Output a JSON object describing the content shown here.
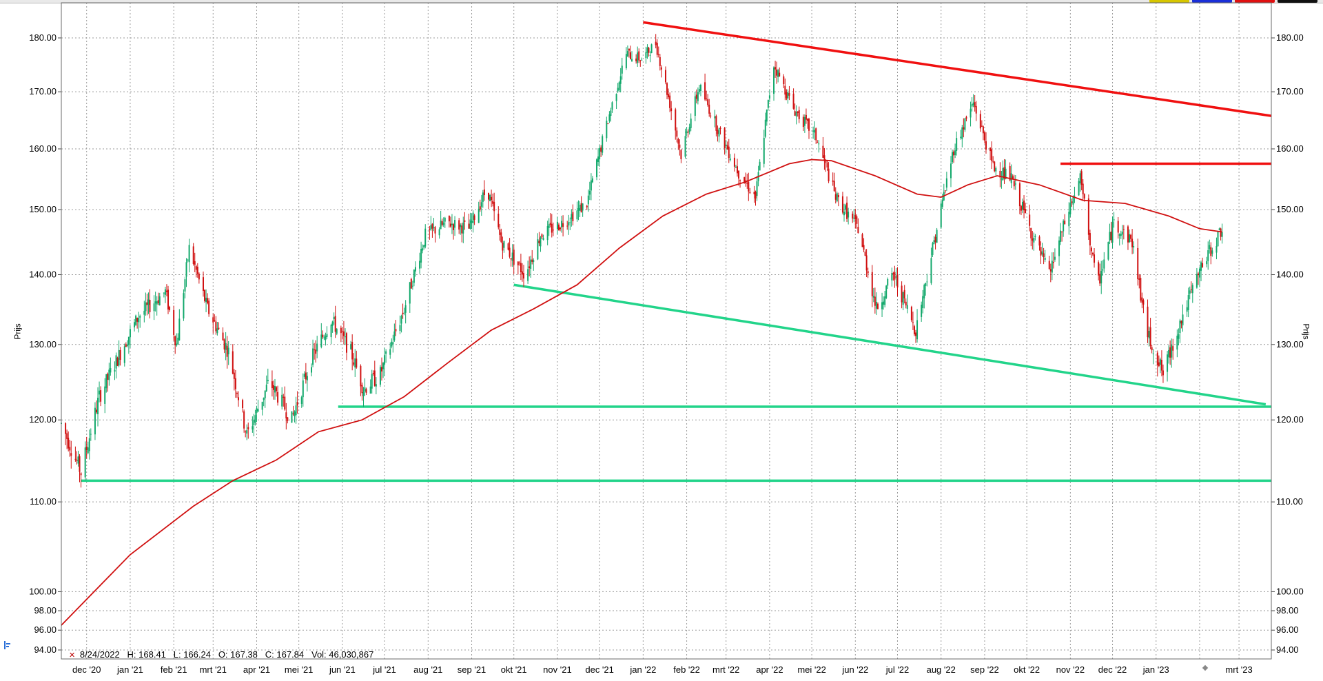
{
  "ohlc_readout": {
    "date": "8/24/2022",
    "high": "H: 168.41",
    "low": "L: 166.24",
    "open": "O: 167.38",
    "close": "C: 167.84",
    "volume": "Vol: 46,030,867"
  },
  "colors": {
    "up": "#12a86b",
    "down": "#d01010",
    "trend_red": "#f01010",
    "trend_green": "#22d48a",
    "ma": "#d01010",
    "grid": "#9a9a9a"
  },
  "icons": [
    "chart-icon",
    "close-x-icon",
    "scroll-diamond-icon"
  ],
  "chart_data": {
    "type": "candlestick",
    "ylabel": "Prijs",
    "ylim": [
      93,
      184
    ],
    "yscale": "log",
    "y_ticks": [
      "180.00",
      "170.00",
      "160.00",
      "150.00",
      "140.00",
      "130.00",
      "120.00",
      "110.00",
      "100.00",
      "98.00",
      "96.00",
      "94.00"
    ],
    "x_ticks": [
      "dec '20",
      "jan '21",
      "feb '21",
      "mrt '21",
      "apr '21",
      "mei '21",
      "jun '21",
      "jul '21",
      "aug '21",
      "sep '21",
      "okt '21",
      "nov '21",
      "dec '21",
      "jan '22",
      "feb '22",
      "mrt '22",
      "apr '22",
      "mei '22",
      "jun '22",
      "jul '22",
      "aug '22",
      "sep '22",
      "okt '22",
      "nov '22",
      "dec '22",
      "jan '23",
      "mrt '23"
    ],
    "x_range": [
      "2020-11-13",
      "2023-03-24"
    ],
    "key_points": [
      {
        "date": "2020-11-13",
        "price": 119.5
      },
      {
        "date": "2020-11-27",
        "price": 113.5
      },
      {
        "date": "2020-12-10",
        "price": 123.0
      },
      {
        "date": "2021-01-07",
        "price": 134.0
      },
      {
        "date": "2021-01-26",
        "price": 137.5
      },
      {
        "date": "2021-02-03",
        "price": 130.0
      },
      {
        "date": "2021-02-12",
        "price": 144.0
      },
      {
        "date": "2021-02-25",
        "price": 135.0
      },
      {
        "date": "2021-03-12",
        "price": 129.0
      },
      {
        "date": "2021-03-25",
        "price": 118.0
      },
      {
        "date": "2021-04-10",
        "price": 125.0
      },
      {
        "date": "2021-04-26",
        "price": 120.0
      },
      {
        "date": "2021-05-10",
        "price": 128.0
      },
      {
        "date": "2021-05-24",
        "price": 133.5
      },
      {
        "date": "2021-06-07",
        "price": 129.0
      },
      {
        "date": "2021-06-16",
        "price": 124.0
      },
      {
        "date": "2021-06-28",
        "price": 126.0
      },
      {
        "date": "2021-07-15",
        "price": 135.0
      },
      {
        "date": "2021-07-30",
        "price": 146.0
      },
      {
        "date": "2021-08-15",
        "price": 148.0
      },
      {
        "date": "2021-08-30",
        "price": 147.0
      },
      {
        "date": "2021-09-12",
        "price": 153.5
      },
      {
        "date": "2021-09-22",
        "price": 145.0
      },
      {
        "date": "2021-10-09",
        "price": 140.0
      },
      {
        "date": "2021-10-20",
        "price": 146.0
      },
      {
        "date": "2021-11-05",
        "price": 148.0
      },
      {
        "date": "2021-11-22",
        "price": 151.0
      },
      {
        "date": "2021-12-07",
        "price": 165.0
      },
      {
        "date": "2021-12-20",
        "price": 177.0
      },
      {
        "date": "2021-12-31",
        "price": 176.0
      },
      {
        "date": "2022-01-10",
        "price": 179.0
      },
      {
        "date": "2022-01-28",
        "price": 159.0
      },
      {
        "date": "2022-02-10",
        "price": 171.0
      },
      {
        "date": "2022-02-24",
        "price": 163.0
      },
      {
        "date": "2022-03-10",
        "price": 156.0
      },
      {
        "date": "2022-03-22",
        "price": 152.0
      },
      {
        "date": "2022-04-04",
        "price": 175.0
      },
      {
        "date": "2022-04-18",
        "price": 167.0
      },
      {
        "date": "2022-05-04",
        "price": 162.0
      },
      {
        "date": "2022-05-18",
        "price": 152.0
      },
      {
        "date": "2022-06-03",
        "price": 147.0
      },
      {
        "date": "2022-06-16",
        "price": 135.0
      },
      {
        "date": "2022-06-28",
        "price": 140.0
      },
      {
        "date": "2022-07-14",
        "price": 132.0
      },
      {
        "date": "2022-07-28",
        "price": 146.0
      },
      {
        "date": "2022-08-10",
        "price": 160.0
      },
      {
        "date": "2022-08-24",
        "price": 168.0
      },
      {
        "date": "2022-09-07",
        "price": 157.0
      },
      {
        "date": "2022-09-20",
        "price": 155.0
      },
      {
        "date": "2022-10-05",
        "price": 146.0
      },
      {
        "date": "2022-10-17",
        "price": 140.0
      },
      {
        "date": "2022-10-31",
        "price": 150.0
      },
      {
        "date": "2022-11-08",
        "price": 155.0
      },
      {
        "date": "2022-11-20",
        "price": 138.0
      },
      {
        "date": "2022-12-02",
        "price": 148.0
      },
      {
        "date": "2022-12-15",
        "price": 145.0
      },
      {
        "date": "2022-12-25",
        "price": 132.0
      },
      {
        "date": "2023-01-06",
        "price": 126.0
      },
      {
        "date": "2023-01-18",
        "price": 133.0
      },
      {
        "date": "2023-02-02",
        "price": 141.0
      },
      {
        "date": "2023-02-12",
        "price": 145.0
      },
      {
        "date": "2023-02-17",
        "price": 147.0
      }
    ],
    "moving_average": [
      {
        "date": "2020-11-13",
        "price": 96.5
      },
      {
        "date": "2021-01-01",
        "price": 104.0
      },
      {
        "date": "2021-02-15",
        "price": 109.5
      },
      {
        "date": "2021-03-15",
        "price": 112.5
      },
      {
        "date": "2021-04-15",
        "price": 115.0
      },
      {
        "date": "2021-05-15",
        "price": 118.5
      },
      {
        "date": "2021-06-15",
        "price": 120.0
      },
      {
        "date": "2021-07-15",
        "price": 123.0
      },
      {
        "date": "2021-08-15",
        "price": 127.5
      },
      {
        "date": "2021-09-15",
        "price": 132.0
      },
      {
        "date": "2021-10-15",
        "price": 135.0
      },
      {
        "date": "2021-11-15",
        "price": 138.5
      },
      {
        "date": "2021-12-15",
        "price": 144.0
      },
      {
        "date": "2022-01-15",
        "price": 149.0
      },
      {
        "date": "2022-02-15",
        "price": 152.5
      },
      {
        "date": "2022-03-15",
        "price": 154.5
      },
      {
        "date": "2022-04-15",
        "price": 157.5
      },
      {
        "date": "2022-05-01",
        "price": 158.2
      },
      {
        "date": "2022-05-15",
        "price": 158.0
      },
      {
        "date": "2022-06-15",
        "price": 155.5
      },
      {
        "date": "2022-07-15",
        "price": 152.5
      },
      {
        "date": "2022-08-01",
        "price": 152.0
      },
      {
        "date": "2022-08-20",
        "price": 154.0
      },
      {
        "date": "2022-09-10",
        "price": 155.5
      },
      {
        "date": "2022-10-10",
        "price": 154.0
      },
      {
        "date": "2022-11-10",
        "price": 151.5
      },
      {
        "date": "2022-12-10",
        "price": 151.0
      },
      {
        "date": "2023-01-10",
        "price": 149.0
      },
      {
        "date": "2023-02-01",
        "price": 147.0
      },
      {
        "date": "2023-02-17",
        "price": 146.5
      }
    ],
    "trend_lines": [
      {
        "color": "red",
        "from": {
          "date": "2022-01-01",
          "price": 183.0
        },
        "to": {
          "date": "2023-03-24",
          "price": 165.7
        }
      },
      {
        "color": "red",
        "from": {
          "date": "2022-10-25",
          "price": 157.5
        },
        "to": {
          "date": "2023-03-24",
          "price": 157.5
        }
      },
      {
        "color": "green",
        "from": {
          "date": "2021-10-01",
          "price": 138.5
        },
        "to": {
          "date": "2023-03-20",
          "price": 122.0
        }
      },
      {
        "color": "green",
        "from": {
          "date": "2021-05-29",
          "price": 121.7
        },
        "to": {
          "date": "2023-03-24",
          "price": 121.7
        }
      },
      {
        "color": "green",
        "from": {
          "date": "2020-11-27",
          "price": 112.5
        },
        "to": {
          "date": "2023-03-24",
          "price": 112.5
        }
      }
    ]
  }
}
